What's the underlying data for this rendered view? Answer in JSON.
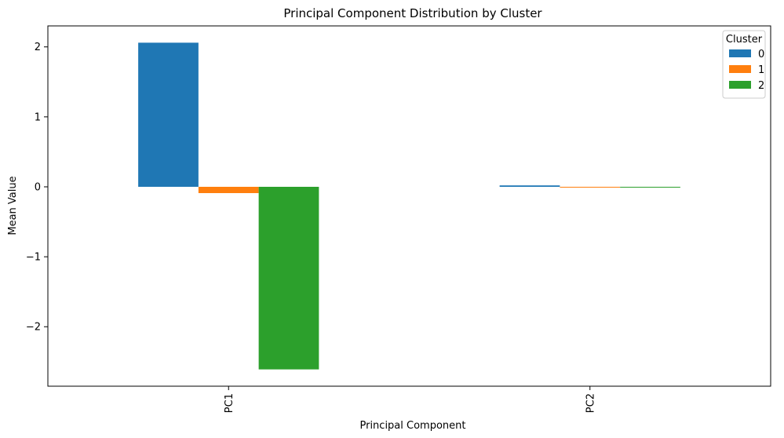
{
  "chart_data": {
    "type": "bar",
    "title": "Principal Component Distribution by Cluster",
    "xlabel": "Principal Component",
    "ylabel": "Mean Value",
    "categories": [
      "PC1",
      "PC2"
    ],
    "series": [
      {
        "name": "0",
        "values": [
          2.06,
          0.02
        ],
        "color": "#1f77b4"
      },
      {
        "name": "1",
        "values": [
          -0.09,
          -0.01
        ],
        "color": "#ff7f0e"
      },
      {
        "name": "2",
        "values": [
          -2.61,
          0.0
        ],
        "color": "#2ca02c"
      }
    ],
    "ylim": [
      -2.85,
      2.3
    ],
    "yticks": [
      2,
      1,
      0,
      -1,
      -2
    ],
    "ytick_labels": [
      "2",
      "1",
      "0",
      "−1",
      "−2"
    ],
    "legend": {
      "title": "Cluster",
      "position": "top-right"
    },
    "grid": false
  }
}
